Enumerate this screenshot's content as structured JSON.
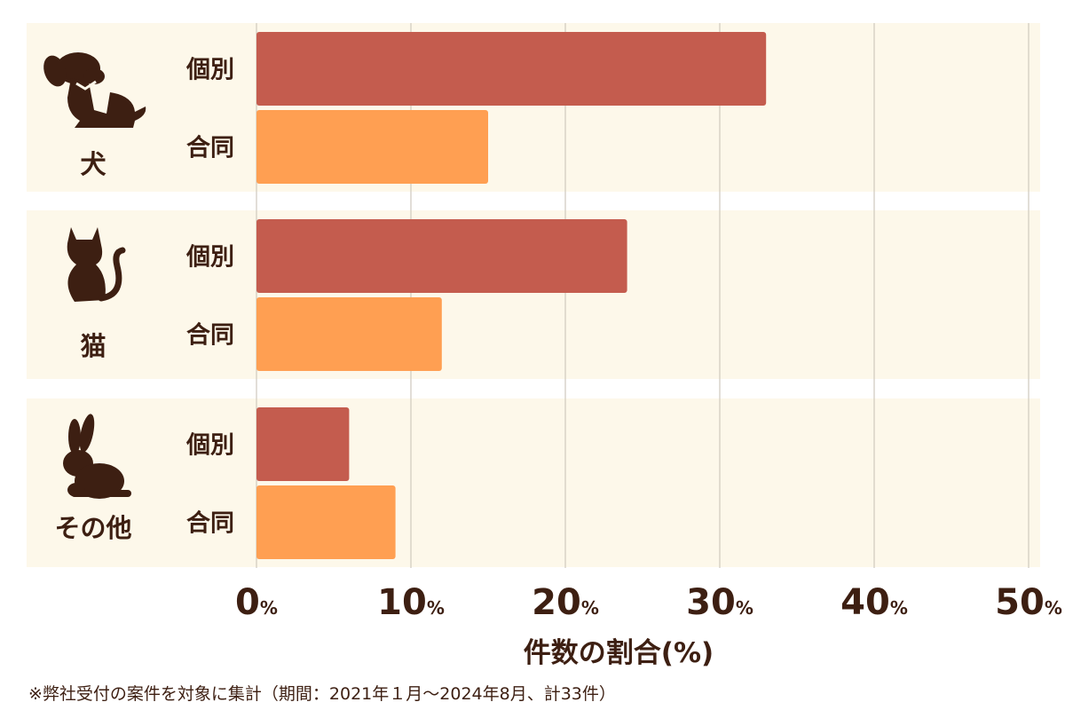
{
  "chart_data": {
    "type": "bar",
    "orientation": "horizontal",
    "categories": [
      "犬",
      "猫",
      "その他"
    ],
    "category_icons": [
      "dog-icon",
      "cat-icon",
      "rabbit-icon"
    ],
    "series": [
      {
        "name": "個別",
        "color": "#c45c4e",
        "values": [
          33,
          24,
          6
        ]
      },
      {
        "name": "合同",
        "color": "#ff9f52",
        "values": [
          15,
          12,
          9
        ]
      }
    ],
    "xlim": [
      0,
      50
    ],
    "xticks": [
      0,
      10,
      20,
      30,
      40,
      50
    ],
    "tick_unit": "%",
    "xlabel": "件数の割合(%)",
    "grid": true,
    "legend": "none"
  },
  "footnote": "※弊社受付の案件を対象に集計（期間：2021年１月～2024年8月、計33件）",
  "colors": {
    "group_background": "#fdf8ea",
    "text": "#3d1f12",
    "grid": "#cfc9bd"
  }
}
